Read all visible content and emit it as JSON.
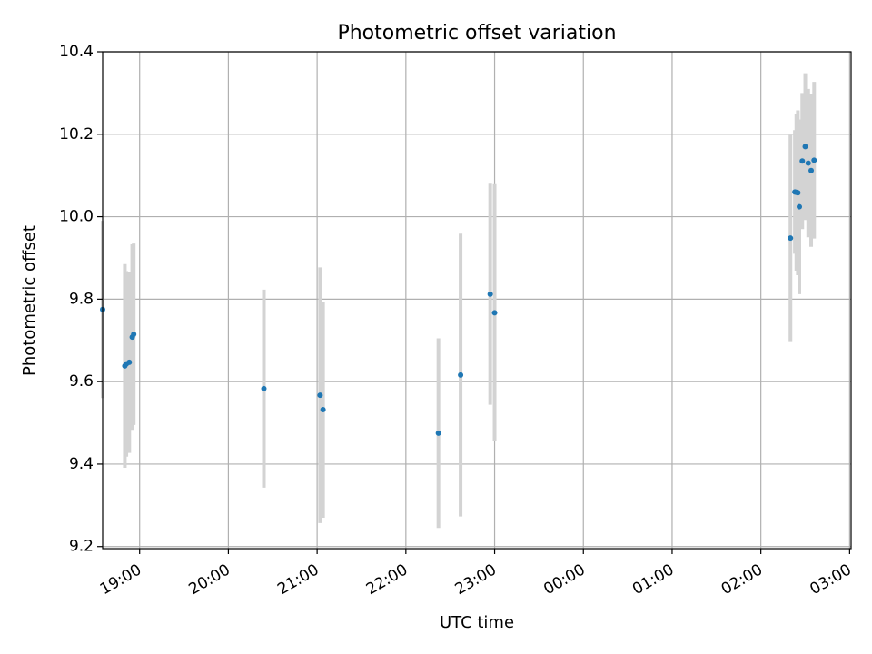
{
  "chart_data": {
    "type": "scatter",
    "title": "Photometric offset variation",
    "xlabel": "UTC time",
    "ylabel": "Photometric offset",
    "ylim": [
      9.195,
      10.4
    ],
    "xlim": [
      "18:35",
      "03:01"
    ],
    "x_ticks": [
      "19:00",
      "20:00",
      "21:00",
      "22:00",
      "23:00",
      "00:00",
      "01:00",
      "02:00",
      "03:00"
    ],
    "y_ticks": [
      "9.2",
      "9.4",
      "9.6",
      "9.8",
      "10.0",
      "10.2",
      "10.4"
    ],
    "grid": true,
    "point_color": "#1f77b4",
    "errorbar_color": "#d3d3d3",
    "points": [
      {
        "x": "18:35",
        "y": 9.775,
        "err": 0.215
      },
      {
        "x": "18:50",
        "y": 9.638,
        "err": 0.247
      },
      {
        "x": "18:51",
        "y": 9.643,
        "err": 0.225
      },
      {
        "x": "18:53",
        "y": 9.647,
        "err": 0.22
      },
      {
        "x": "18:55",
        "y": 9.708,
        "err": 0.225
      },
      {
        "x": "18:56",
        "y": 9.715,
        "err": 0.22
      },
      {
        "x": "20:24",
        "y": 9.583,
        "err": 0.24
      },
      {
        "x": "21:02",
        "y": 9.567,
        "err": 0.31
      },
      {
        "x": "21:04",
        "y": 9.532,
        "err": 0.262
      },
      {
        "x": "22:22",
        "y": 9.475,
        "err": 0.23
      },
      {
        "x": "22:37",
        "y": 9.616,
        "err": 0.343
      },
      {
        "x": "22:57",
        "y": 9.812,
        "err": 0.268
      },
      {
        "x": "23:00",
        "y": 9.767,
        "err": 0.312
      },
      {
        "x": "02:20",
        "y": 9.948,
        "err": 0.25
      },
      {
        "x": "02:23",
        "y": 10.06,
        "err": 0.15
      },
      {
        "x": "02:24",
        "y": 10.059,
        "err": 0.19
      },
      {
        "x": "02:25",
        "y": 10.058,
        "err": 0.2
      },
      {
        "x": "02:26",
        "y": 10.024,
        "err": 0.212
      },
      {
        "x": "02:28",
        "y": 10.135,
        "err": 0.165
      },
      {
        "x": "02:30",
        "y": 10.17,
        "err": 0.178
      },
      {
        "x": "02:32",
        "y": 10.13,
        "err": 0.18
      },
      {
        "x": "02:34",
        "y": 10.112,
        "err": 0.185
      },
      {
        "x": "02:36",
        "y": 10.137,
        "err": 0.19
      }
    ]
  }
}
